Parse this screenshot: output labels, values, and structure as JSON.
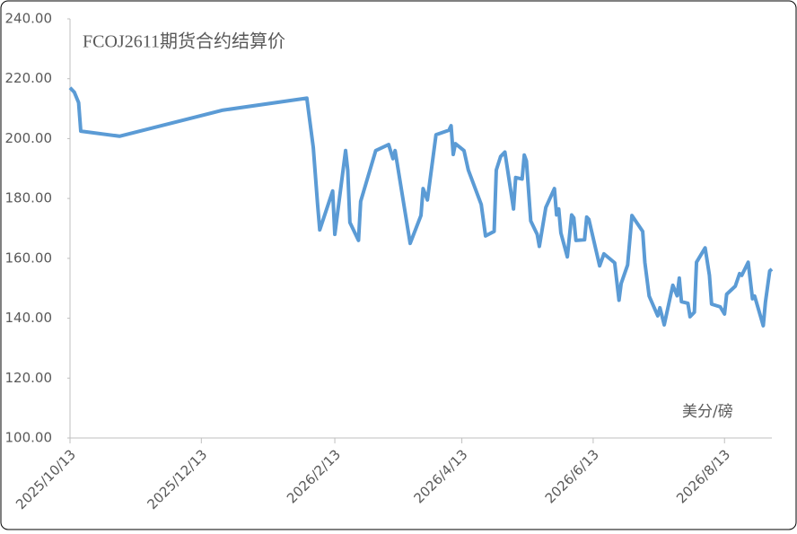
{
  "chart_data": {
    "type": "line",
    "title": "FCOJ2611期货合约结算价",
    "annotation": "美分/磅",
    "x": [
      "2025/10/13",
      "2025/10/15",
      "2025/10/17",
      "2025/10/18",
      "2025/11/5",
      "2025/12/23",
      "2026/1/31",
      "2026/2/3",
      "2026/2/5",
      "2026/2/6",
      "2026/2/12",
      "2026/2/13",
      "2026/2/18",
      "2026/2/19",
      "2026/2/20",
      "2026/2/24",
      "2026/2/25",
      "2026/3/4",
      "2026/3/10",
      "2026/3/12",
      "2026/3/13",
      "2026/3/20",
      "2026/3/25",
      "2026/3/26",
      "2026/3/28",
      "2026/4/1",
      "2026/4/7",
      "2026/4/8",
      "2026/4/9",
      "2026/4/10",
      "2026/4/14",
      "2026/4/16",
      "2026/4/22",
      "2026/4/24",
      "2026/4/28",
      "2026/4/29",
      "2026/5/1",
      "2026/5/3",
      "2026/5/7",
      "2026/5/8",
      "2026/5/11",
      "2026/5/12",
      "2026/5/13",
      "2026/5/15",
      "2026/5/18",
      "2026/5/19",
      "2026/5/22",
      "2026/5/26",
      "2026/5/27",
      "2026/5/28",
      "2026/5/29",
      "2026/6/1",
      "2026/6/3",
      "2026/6/4",
      "2026/6/5",
      "2026/6/9",
      "2026/6/10",
      "2026/6/11",
      "2026/6/16",
      "2026/6/18",
      "2026/6/23",
      "2026/6/25",
      "2026/6/26",
      "2026/6/29",
      "2026/7/1",
      "2026/7/6",
      "2026/7/7",
      "2026/7/9",
      "2026/7/13",
      "2026/7/14",
      "2026/7/16",
      "2026/7/20",
      "2026/7/22",
      "2026/7/23",
      "2026/7/24",
      "2026/7/27",
      "2026/7/28",
      "2026/7/30",
      "2026/7/31",
      "2026/8/4",
      "2026/8/6",
      "2026/8/7",
      "2026/8/11",
      "2026/8/13",
      "2026/8/14",
      "2026/8/18",
      "2026/8/20",
      "2026/8/21",
      "2026/8/24",
      "2026/8/26",
      "2026/8/27",
      "2026/8/31",
      "2026/9/1",
      "2026/9/3",
      "2026/9/4"
    ],
    "series": [
      {
        "name": "FCOJ2611",
        "color": "#5b9bd5",
        "values": [
          217,
          215.5,
          212,
          202.5,
          200.8,
          209.5,
          213.5,
          197,
          178,
          169.5,
          182.5,
          168,
          196,
          189.5,
          172,
          166,
          179,
          196,
          198,
          193.3,
          196,
          165,
          174.3,
          183.3,
          179.5,
          201.3,
          202.8,
          204.3,
          194.7,
          198.3,
          196,
          189.5,
          178,
          167.5,
          169,
          189.5,
          194,
          195.5,
          176.5,
          187,
          186.5,
          194.5,
          192.5,
          172.5,
          168,
          164,
          177,
          183.3,
          174.5,
          176.5,
          168.5,
          160.5,
          174.5,
          173.5,
          166,
          166.2,
          173.8,
          173,
          157.5,
          161.5,
          158.5,
          146,
          151.6,
          157.8,
          174.3,
          169,
          158.7,
          147.4,
          140.8,
          143.5,
          137.8,
          151,
          147.5,
          153.4,
          145.5,
          145,
          140.5,
          142,
          158.7,
          163.5,
          154.3,
          144.7,
          143.8,
          141.4,
          148,
          150.7,
          154.9,
          154.3,
          158.7,
          146.5,
          147.4,
          137.5,
          145.3,
          155.8,
          156.4
        ]
      }
    ],
    "xlim": [
      "2025/10/13",
      "2026/9/4"
    ],
    "xticks": [
      "2025/10/13",
      "2025/12/13",
      "2026/2/13",
      "2026/4/13",
      "2026/6/13",
      "2026/8/13"
    ],
    "ylim": [
      100,
      240
    ],
    "yticks": [
      {
        "value": 100,
        "label": "100.00"
      },
      {
        "value": 120,
        "label": "120.00"
      },
      {
        "value": 140,
        "label": "140.00"
      },
      {
        "value": 160,
        "label": "160.00"
      },
      {
        "value": 180,
        "label": "180.00"
      },
      {
        "value": 200,
        "label": "200.00"
      },
      {
        "value": 220,
        "label": "220.00"
      },
      {
        "value": 240,
        "label": "240.00"
      }
    ]
  }
}
